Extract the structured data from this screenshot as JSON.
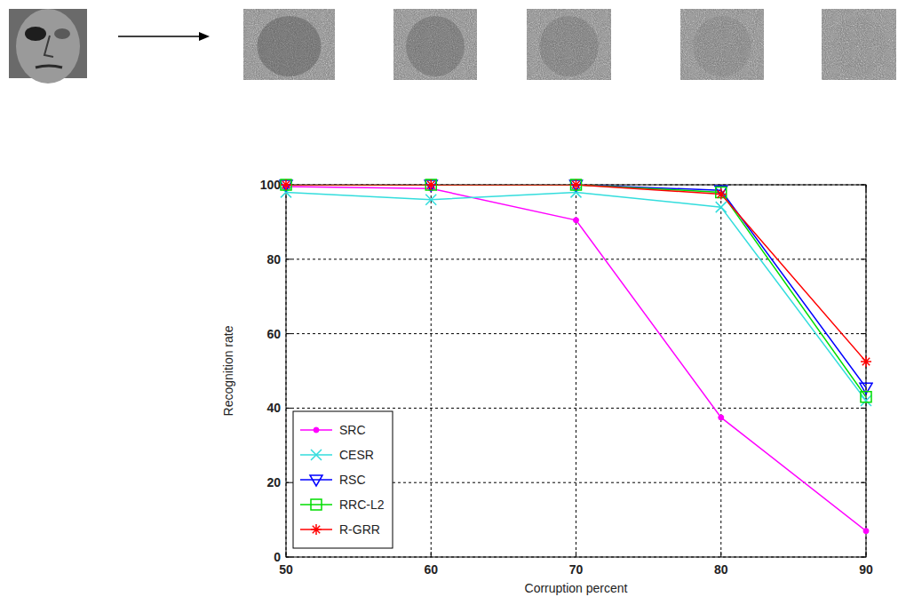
{
  "chart_data": {
    "type": "line",
    "x_label": "Corruption percent",
    "y_label": "Recognition rate",
    "x": [
      50,
      60,
      70,
      80,
      90
    ],
    "xlim": [
      50,
      90
    ],
    "xticks": [
      50,
      60,
      70,
      80,
      90
    ],
    "ylim": [
      0,
      100
    ],
    "yticks": [
      0,
      20,
      40,
      60,
      80,
      100
    ],
    "grid": true,
    "legend": "lower left",
    "series": [
      {
        "name": "SRC",
        "color": "#ff00ff",
        "marker": "dot",
        "values": [
          99.5,
          99,
          90.5,
          37.5,
          7
        ]
      },
      {
        "name": "CESR",
        "color": "#33dddd",
        "marker": "x",
        "values": [
          98,
          96,
          98,
          94,
          42
        ]
      },
      {
        "name": "RSC",
        "color": "#0000ff",
        "marker": "triangle-down",
        "values": [
          100,
          100,
          100,
          98.5,
          45.5
        ]
      },
      {
        "name": "RRC-L2",
        "color": "#00dd00",
        "marker": "square",
        "values": [
          100,
          100,
          100,
          98,
          43
        ]
      },
      {
        "name": "R-GRR",
        "color": "#ff0000",
        "marker": "asterisk",
        "values": [
          100,
          100,
          100,
          97.5,
          52.5
        ]
      }
    ]
  }
}
